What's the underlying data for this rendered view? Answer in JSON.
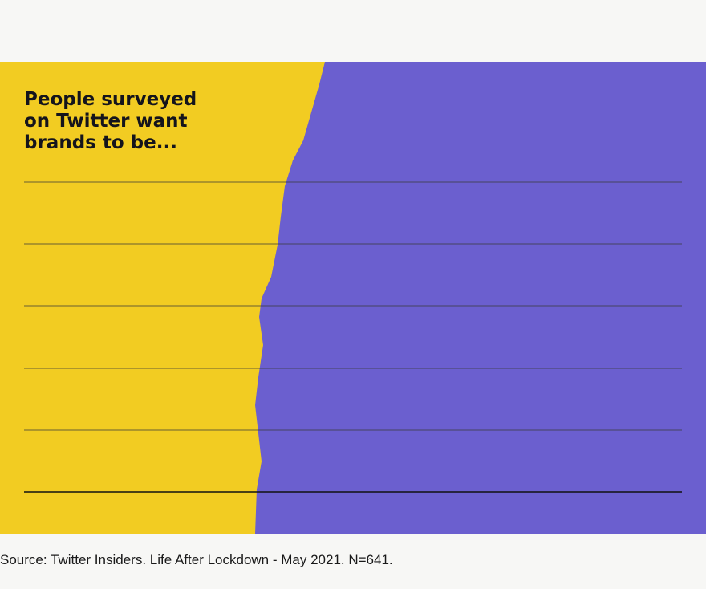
{
  "header": {
    "title_lines": [
      "People surveyed",
      "on Twitter want",
      "brands to be..."
    ]
  },
  "footer": {
    "source": "Source: Twitter Insiders. Life After Lockdown - May 2021. N=641."
  }
}
